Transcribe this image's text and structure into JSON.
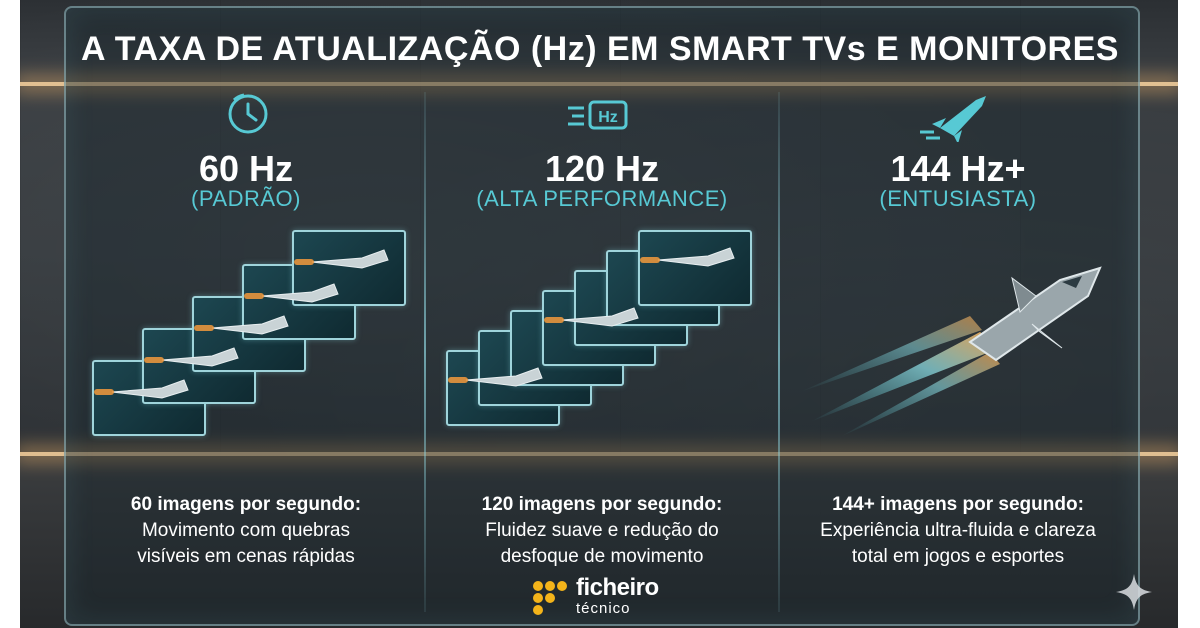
{
  "title": "A TAXA DE ATUALIZAÇÃO (Hz) EM SMART TVs E MONITORES",
  "colors": {
    "accent": "#57c9d4",
    "glow": "#ffd7a0",
    "logo_yellow": "#f4b41a",
    "frame_border": "#9fd4db"
  },
  "columns": [
    {
      "icon": "clock-icon",
      "hz": "60 Hz",
      "tier": "(PADRÃO)",
      "frame_count": 5,
      "desc_bold": "60 imagens por segundo:",
      "desc_line1": "Movimento com quebras",
      "desc_line2": "visíveis em cenas rápidas"
    },
    {
      "icon": "hz-badge-icon",
      "icon_text": "Hz",
      "hz": "120 Hz",
      "tier": "(ALTA PERFORMANCE)",
      "frame_count": 7,
      "desc_bold": "120 imagens por segundo:",
      "desc_line1": "Fluidez suave e redução do",
      "desc_line2": "desfoque de movimento"
    },
    {
      "icon": "rocket-icon",
      "hz": "144 Hz+",
      "tier": "(ENTUSIASTA)",
      "frame_count": 0,
      "desc_bold": "144+ imagens por segundo:",
      "desc_line1": "Experiência ultra-fluida e clareza",
      "desc_line2": "total em jogos e esportes"
    }
  ],
  "logo": {
    "word": "ficheiro",
    "sub": "técnico"
  }
}
